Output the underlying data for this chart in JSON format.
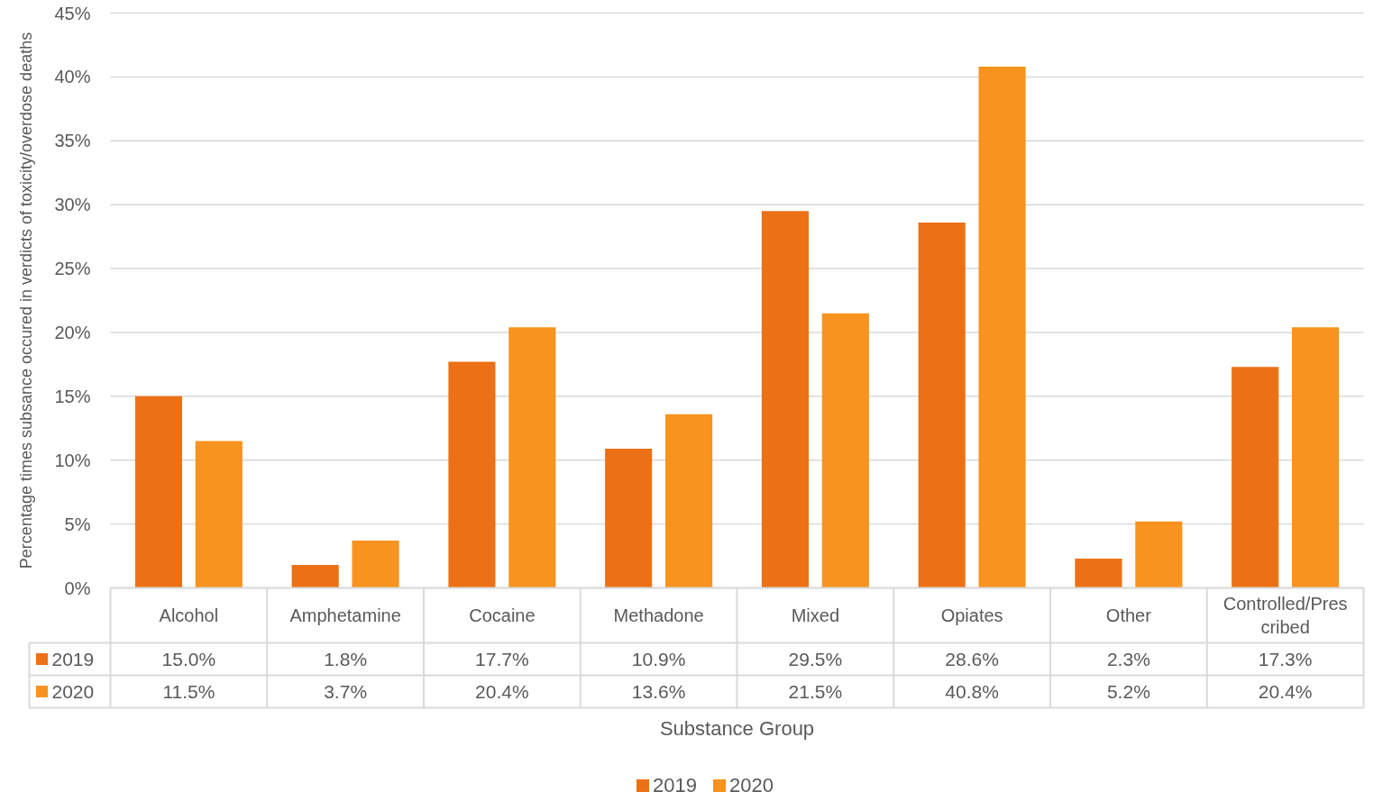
{
  "chart_data": {
    "type": "bar",
    "xlabel": "Substance Group",
    "ylabel": "Percentage times subsance occured in verdicts of toxicity/overdose deaths",
    "categories": [
      "Alcohol",
      "Amphetamine",
      "Cocaine",
      "Methadone",
      "Mixed",
      "Opiates",
      "Other",
      "Controlled/Prescribed"
    ],
    "series": [
      {
        "name": "2019",
        "color": "#ec7116",
        "values": [
          15.0,
          1.8,
          17.7,
          10.9,
          29.5,
          28.6,
          2.3,
          17.3
        ],
        "value_labels": [
          "15.0%",
          "1.8%",
          "17.7%",
          "10.9%",
          "29.5%",
          "28.6%",
          "2.3%",
          "17.3%"
        ]
      },
      {
        "name": "2020",
        "color": "#f7931e",
        "values": [
          11.5,
          3.7,
          20.4,
          13.6,
          21.5,
          40.8,
          5.2,
          20.4
        ],
        "value_labels": [
          "11.5%",
          "3.7%",
          "20.4%",
          "13.6%",
          "21.5%",
          "40.8%",
          "5.2%",
          "20.4%"
        ]
      }
    ],
    "ylim": [
      0,
      45
    ],
    "yticks": [
      {
        "value": 0,
        "label": "0%"
      },
      {
        "value": 5,
        "label": "5%"
      },
      {
        "value": 10,
        "label": "10%"
      },
      {
        "value": 15,
        "label": "15%"
      },
      {
        "value": 20,
        "label": "20%"
      },
      {
        "value": 25,
        "label": "25%"
      },
      {
        "value": 30,
        "label": "30%"
      },
      {
        "value": 35,
        "label": "35%"
      },
      {
        "value": 40,
        "label": "40%"
      },
      {
        "value": 45,
        "label": "45%"
      }
    ],
    "grid": "y",
    "legend": "bottom"
  }
}
